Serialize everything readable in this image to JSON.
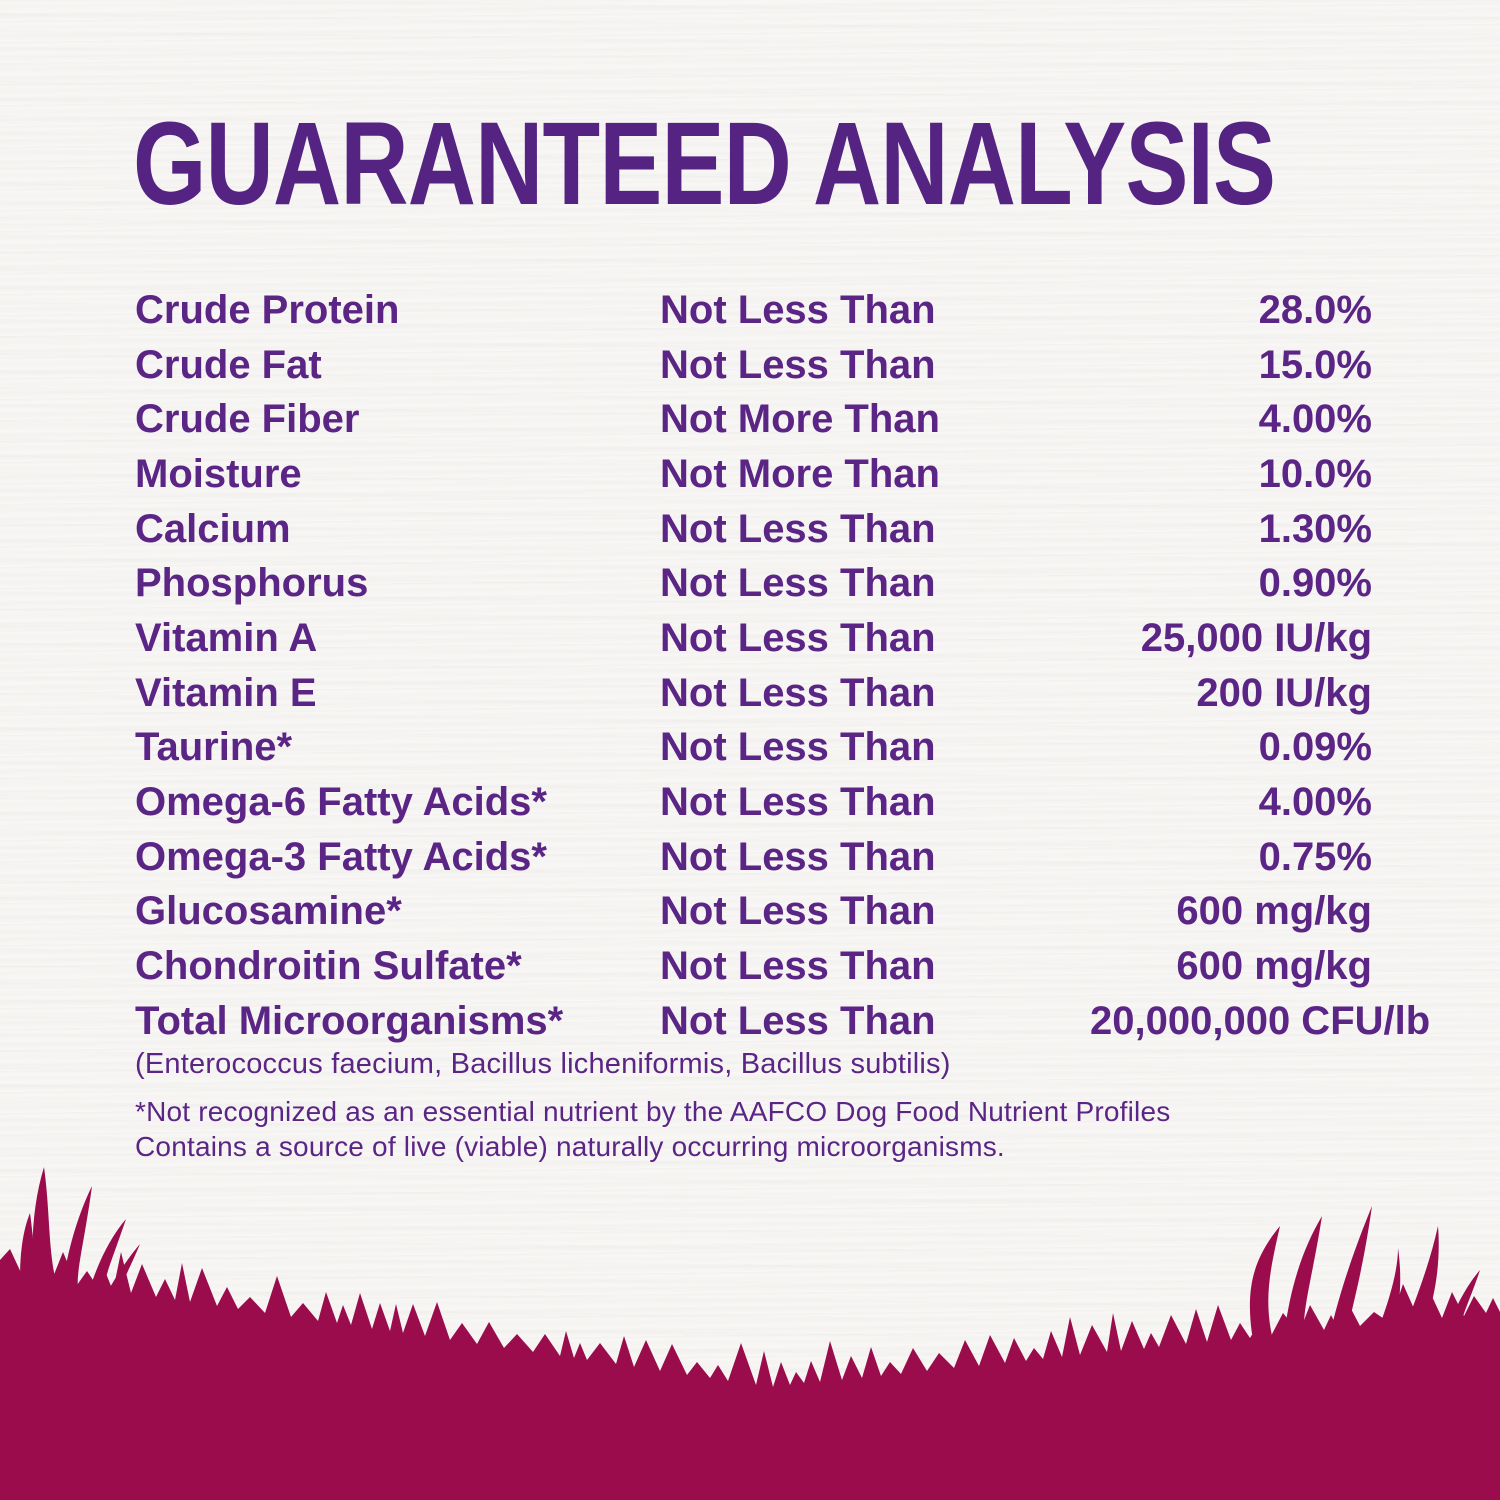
{
  "page": {
    "title": "GUARANTEED ANALYSIS",
    "colors": {
      "title": "#552483",
      "text": "#5B2586",
      "grass": "#9A0C4B",
      "background": "#F8F7F5"
    }
  },
  "table": {
    "rows": [
      {
        "nutrient": "Crude Protein",
        "qualifier": "Not Less Than",
        "value": "28.0%"
      },
      {
        "nutrient": "Crude Fat",
        "qualifier": "Not Less Than",
        "value": "15.0%"
      },
      {
        "nutrient": "Crude Fiber",
        "qualifier": "Not More Than",
        "value": "4.00%"
      },
      {
        "nutrient": "Moisture",
        "qualifier": "Not More Than",
        "value": "10.0%"
      },
      {
        "nutrient": "Calcium",
        "qualifier": "Not Less Than",
        "value": "1.30%"
      },
      {
        "nutrient": "Phosphorus",
        "qualifier": "Not Less Than",
        "value": "0.90%"
      },
      {
        "nutrient": "Vitamin A",
        "qualifier": "Not Less Than",
        "value": "25,000 IU/kg"
      },
      {
        "nutrient": "Vitamin E",
        "qualifier": "Not Less Than",
        "value": "200 IU/kg"
      },
      {
        "nutrient": "Taurine*",
        "qualifier": "Not Less Than",
        "value": "0.09%"
      },
      {
        "nutrient": "Omega-6 Fatty Acids*",
        "qualifier": "Not Less Than",
        "value": "4.00%"
      },
      {
        "nutrient": "Omega-3 Fatty Acids*",
        "qualifier": "Not Less Than",
        "value": "0.75%"
      },
      {
        "nutrient": "Glucosamine*",
        "qualifier": "Not Less Than",
        "value": "600 mg/kg"
      },
      {
        "nutrient": "Chondroitin Sulfate*",
        "qualifier": "Not Less Than",
        "value": "600 mg/kg"
      },
      {
        "nutrient": "Total Microorganisms*",
        "qualifier": "Not Less Than",
        "value": "20,000,000 CFU/lb"
      }
    ],
    "microorganisms_note": "(Enterococcus faecium, Bacillus licheniformis, Bacillus subtilis)"
  },
  "footnotes": {
    "line1": "*Not recognized as an essential nutrient by the AAFCO Dog Food Nutrient Profiles",
    "line2": "Contains a source of live (viable) naturally occurring microorganisms."
  }
}
